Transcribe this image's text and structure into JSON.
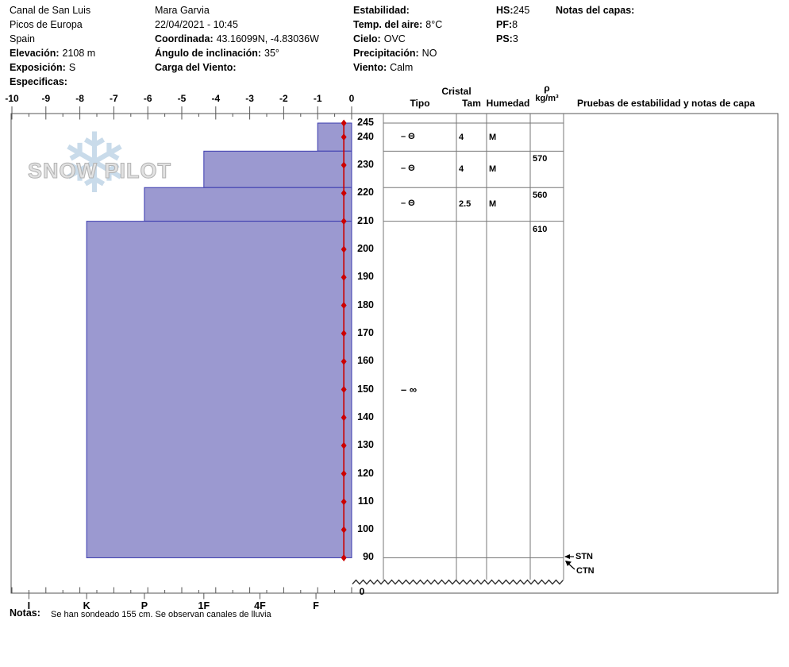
{
  "colors": {
    "bar_fill": "#9b99d0",
    "bar_border": "#3a3aae",
    "temperature": "#cc0000",
    "grid": "#777777",
    "watermark_flake": "#c9dbea"
  },
  "watermark": {
    "text": "SNOW PILOT",
    "snowflake": "❄"
  },
  "header": {
    "site": {
      "name": "Canal de San Luis",
      "range": "Picos de Europa",
      "country": "Spain",
      "elevation_label": "Elevación:",
      "elevation": "2108 m",
      "aspect_label": "Exposición:",
      "aspect": "S",
      "specifics_label": "Especificas:"
    },
    "observer": {
      "name": "Mara Garvia",
      "datetime": "22/04/2021 - 10:45",
      "coord_label": "Coordinada:",
      "coord": "43.16099N, -4.83036W",
      "slope_label": "Ángulo de inclinación:",
      "slope": "35°",
      "wind_load_label": "Carga del Viento:"
    },
    "conditions": {
      "stability_label": "Estabilidad:",
      "air_temp_label": "Temp. del aire:",
      "air_temp": "8°C",
      "sky_label": "Cielo:",
      "sky": "OVC",
      "precip_label": "Precipitación:",
      "precip": "NO",
      "wind_label": "Viento:",
      "wind": "Calm"
    },
    "summary": {
      "hs_label": "HS:",
      "hs": "245",
      "pf_label": "PF:",
      "pf": "8",
      "ps_label": "PS:",
      "ps": "3"
    },
    "layer_notes_label": "Notas del capas:"
  },
  "table_headers": {
    "cristal": "Cristal",
    "tipo": "Tipo",
    "tam": "Tam",
    "humedad": "Humedad",
    "rho": "ρ",
    "rho_units": "kg/m³",
    "stability": "Pruebas de estabilidad y notas de capa"
  },
  "footer": {
    "notes_label": "Notas:",
    "notes_text": "Se han sondeado 155 cm. Se observan canales de lluvia"
  },
  "chart_data": {
    "type": "bar",
    "hardness_axis": {
      "min": -10,
      "max": 0,
      "tick_labels": [
        "-10",
        "-9",
        "-8",
        "-7",
        "-6",
        "-5",
        "-4",
        "-3",
        "-2",
        "-1",
        "0"
      ],
      "category_labels": [
        "I",
        "K",
        "P",
        "1F",
        "4F",
        "F"
      ],
      "category_positions": [
        -9.5,
        -7.8,
        -6.1,
        -4.35,
        -2.7,
        -1.05
      ]
    },
    "depth_axis": {
      "unit": "cm",
      "surface": 245,
      "pit_bottom": 90,
      "tick_labels": [
        245,
        240,
        230,
        220,
        210,
        200,
        190,
        180,
        170,
        160,
        150,
        140,
        130,
        120,
        110,
        100,
        90
      ],
      "ground_label": "0"
    },
    "layers": [
      {
        "top_cm": 245,
        "bottom_cm": 235,
        "hardness": "F",
        "hardness_value": -1.0,
        "grain_symbol": "Θ",
        "grain_size_mm": "4",
        "moisture": "M",
        "density_kg_m3": ""
      },
      {
        "top_cm": 235,
        "bottom_cm": 222,
        "hardness": "1F",
        "hardness_value": -4.35,
        "grain_symbol": "Θ",
        "grain_size_mm": "4",
        "moisture": "M",
        "density_kg_m3": "570"
      },
      {
        "top_cm": 222,
        "bottom_cm": 210,
        "hardness": "P",
        "hardness_value": -6.1,
        "grain_symbol": "Θ",
        "grain_size_mm": "2.5",
        "moisture": "M",
        "density_kg_m3": "560"
      },
      {
        "top_cm": 210,
        "bottom_cm": 90,
        "hardness": "K",
        "hardness_value": -7.8,
        "grain_symbol": "∞",
        "symbol_depth_cm": 150,
        "grain_size_mm": "",
        "moisture": "",
        "density_kg_m3": "610"
      }
    ],
    "temperature_profile": {
      "color": "#cc0000",
      "value_c": -0.23,
      "marker_depths_cm": [
        245,
        240,
        230,
        220,
        210,
        200,
        190,
        180,
        170,
        160,
        150,
        140,
        130,
        120,
        110,
        100,
        90
      ]
    },
    "stability_tests": [
      "STN",
      "CTN"
    ]
  }
}
